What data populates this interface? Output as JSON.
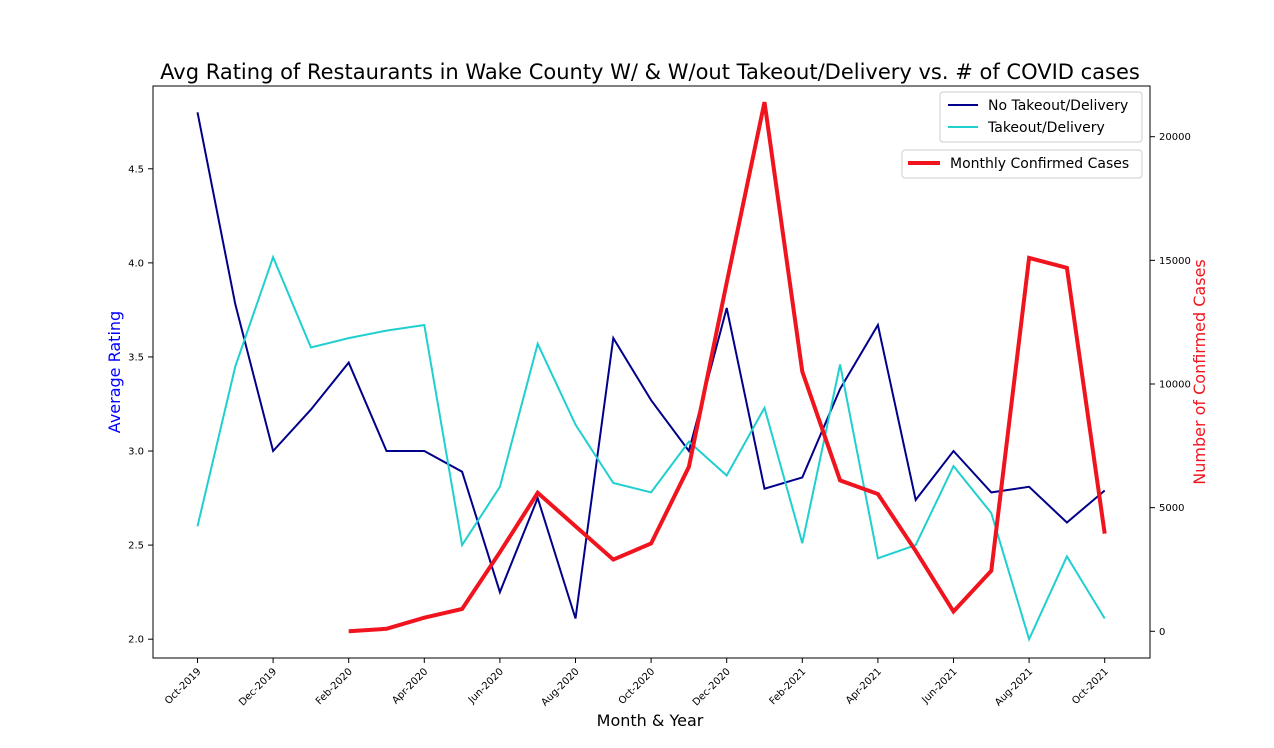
{
  "chart_data": {
    "type": "line",
    "title": "Avg Rating of Restaurants in Wake County W/ & W/out Takeout/Delivery vs. # of COVID cases",
    "xlabel": "Month & Year",
    "ylabel": "Average Rating",
    "y2label": "Number of Confirmed Cases",
    "ylim": [
      1.9,
      4.94
    ],
    "y2lim": [
      -1080,
      22050
    ],
    "yticks": [
      "2.0",
      "2.5",
      "3.0",
      "3.5",
      "4.0",
      "4.5"
    ],
    "y2ticks": [
      "0",
      "5000",
      "10000",
      "15000",
      "20000"
    ],
    "xticks": [
      "Oct-2019",
      "Dec-2019",
      "Feb-2020",
      "Apr-2020",
      "Jun-2020",
      "Aug-2020",
      "Oct-2020",
      "Dec-2020",
      "Feb-2021",
      "Apr-2021",
      "Jun-2021",
      "Aug-2021",
      "Oct-2021"
    ],
    "x": [
      "Oct-2019",
      "Nov-2019",
      "Dec-2019",
      "Jan-2020",
      "Feb-2020",
      "Mar-2020",
      "Apr-2020",
      "May-2020",
      "Jun-2020",
      "Jul-2020",
      "Aug-2020",
      "Sep-2020",
      "Oct-2020",
      "Nov-2020",
      "Dec-2020",
      "Jan-2021",
      "Feb-2021",
      "Mar-2021",
      "Apr-2021",
      "May-2021",
      "Jun-2021",
      "Jul-2021",
      "Aug-2021",
      "Sep-2021",
      "Oct-2021"
    ],
    "legend": "top-right",
    "grid": false,
    "series": [
      {
        "name": "No Takeout/Delivery",
        "axis": "left",
        "color": "#00008b",
        "values": [
          4.8,
          3.78,
          3.0,
          3.22,
          3.47,
          3.0,
          3.0,
          2.89,
          2.25,
          2.75,
          2.11,
          3.6,
          3.27,
          3.0,
          3.76,
          2.8,
          2.86,
          3.33,
          3.67,
          2.74,
          3.0,
          2.78,
          2.81,
          2.62,
          2.79
        ]
      },
      {
        "name": "Takeout/Delivery",
        "axis": "left",
        "color": "#20cfcf",
        "values": [
          2.6,
          3.45,
          4.03,
          3.55,
          3.6,
          3.64,
          3.67,
          2.5,
          2.81,
          3.57,
          3.14,
          2.83,
          2.78,
          3.05,
          2.87,
          3.23,
          2.51,
          3.46,
          2.43,
          2.5,
          2.92,
          2.67,
          2.0,
          2.44,
          2.11
        ]
      },
      {
        "name": "Monthly Confirmed Cases",
        "axis": "right",
        "color": "#f0141e",
        "values": [
          null,
          null,
          null,
          null,
          0,
          100,
          550,
          900,
          3200,
          5600,
          4250,
          2900,
          3550,
          6650,
          14100,
          21400,
          10500,
          6100,
          5550,
          3250,
          800,
          2450,
          15100,
          14700,
          3950
        ]
      }
    ]
  }
}
